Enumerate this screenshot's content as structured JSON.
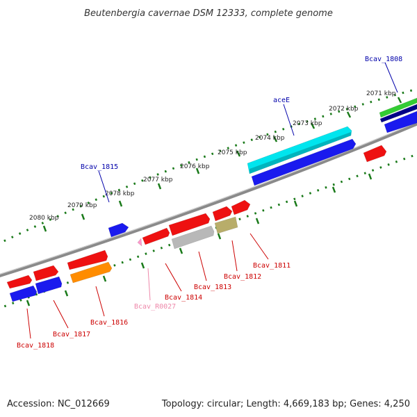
{
  "title": "Beutenbergia cavernae DSM 12333, complete genome",
  "footer": {
    "accession": "Accession: NC_012669",
    "topology": "Topology: circular; Length: 4,669,183 bp; Genes: 4,250"
  },
  "colors": {
    "backbone": "#8a8a8a",
    "tick_track": "#1a7a1a",
    "label_red": "#cc0000",
    "label_blue": "#0000aa",
    "label_pink": "#ee88aa"
  },
  "ruler_labels": [
    "2071 kbp",
    "2072 kbp",
    "2073 kbp",
    "2074 kbp",
    "2075 kbp",
    "2076 kbp",
    "2077 kbp",
    "2078 kbp",
    "2079 kbp",
    "2080 kbp"
  ],
  "features": [
    {
      "id": "g-aceE-cyan",
      "color": "#00e5ee"
    },
    {
      "id": "g-aceE-blue",
      "color": "#1a1aee"
    },
    {
      "id": "g-1808-green",
      "color": "#33cc33"
    },
    {
      "id": "g-1808-navy",
      "color": "#000088"
    },
    {
      "id": "g-1808-blue",
      "color": "#1a1aee"
    },
    {
      "id": "g-1815-blue",
      "color": "#1a1aee"
    },
    {
      "id": "g-red-a",
      "color": "#ee1111"
    },
    {
      "id": "g-1811",
      "color": "#ee1111"
    },
    {
      "id": "g-1812-red",
      "color": "#ee1111"
    },
    {
      "id": "g-1812-olive",
      "color": "#b8ad6a"
    },
    {
      "id": "g-1813-red",
      "color": "#ee1111"
    },
    {
      "id": "g-1813-grey",
      "color": "#b8b8b8"
    },
    {
      "id": "g-1814",
      "color": "#ee1111"
    },
    {
      "id": "g-R0027",
      "color": "#ff99cc"
    },
    {
      "id": "g-1816-red",
      "color": "#ee1111"
    },
    {
      "id": "g-1816-orange",
      "color": "#ff8c00"
    },
    {
      "id": "g-1817-red",
      "color": "#ee1111"
    },
    {
      "id": "g-1817-blue",
      "color": "#1a1aee"
    },
    {
      "id": "g-1818-red",
      "color": "#ee1111"
    },
    {
      "id": "g-1818-blue",
      "color": "#1a1aee"
    }
  ],
  "gene_labels": [
    {
      "text": "Bcav_1808",
      "color": "#0000aa"
    },
    {
      "text": "aceE",
      "color": "#0000aa"
    },
    {
      "text": "Bcav_1815",
      "color": "#0000aa"
    },
    {
      "text": "Bcav_1811",
      "color": "#cc0000"
    },
    {
      "text": "Bcav_1812",
      "color": "#cc0000"
    },
    {
      "text": "Bcav_1813",
      "color": "#cc0000"
    },
    {
      "text": "Bcav_1814",
      "color": "#cc0000"
    },
    {
      "text": "Bcav_R0027",
      "color": "#ee88aa"
    },
    {
      "text": "Bcav_1816",
      "color": "#cc0000"
    },
    {
      "text": "Bcav_1817",
      "color": "#cc0000"
    },
    {
      "text": "Bcav_1818",
      "color": "#cc0000"
    }
  ]
}
